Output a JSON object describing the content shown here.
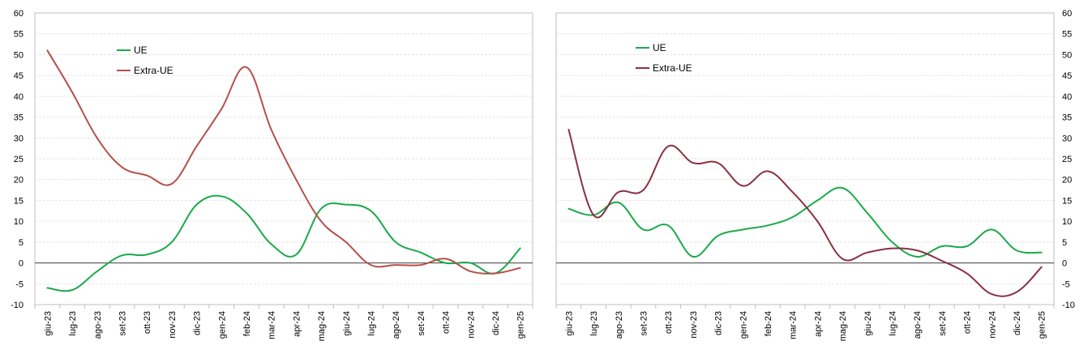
{
  "chart_data": [
    {
      "type": "line",
      "categories": [
        "giu-23",
        "lug-23",
        "ago-23",
        "set-23",
        "ott-23",
        "nov-23",
        "dic-23",
        "gen-24",
        "feb-24",
        "mar-24",
        "apr-24",
        "mag-24",
        "giu-24",
        "lug-24",
        "ago-24",
        "set-24",
        "ott-24",
        "nov-24",
        "dic-24",
        "gen-25"
      ],
      "y_axis": "left",
      "ylim": [
        -10,
        60
      ],
      "yticks": [
        "-10",
        "-5",
        "0",
        "5",
        "10",
        "15",
        "20",
        "25",
        "30",
        "35",
        "40",
        "45",
        "50",
        "55",
        "60"
      ],
      "grid": true,
      "legend_position": "top-left",
      "series": [
        {
          "name": "UE",
          "color": "#1aaa4a",
          "values": [
            -6,
            -6.5,
            -2,
            1.8,
            2,
            5,
            14,
            16,
            12,
            4.5,
            2,
            13,
            14,
            12.5,
            5,
            2.5,
            0,
            0,
            -2.5,
            3.5
          ]
        },
        {
          "name": "Extra-UE",
          "color": "#b5504b",
          "values": [
            51,
            41,
            30,
            23,
            21,
            19,
            28,
            37,
            47,
            32,
            20,
            10,
            5,
            -0.5,
            -0.5,
            -0.5,
            1,
            -2,
            -2.5,
            -1.2
          ]
        }
      ]
    },
    {
      "type": "line",
      "categories": [
        "giu-23",
        "lug-23",
        "ago-23",
        "set-23",
        "ott-23",
        "nov-23",
        "dic-23",
        "gen-24",
        "feb-24",
        "mar-24",
        "apr-24",
        "mag-24",
        "giu-24",
        "lug-24",
        "ago-24",
        "set-24",
        "ott-24",
        "nov-24",
        "dic-24",
        "gen-25"
      ],
      "y_axis": "right",
      "ylim": [
        -10,
        60
      ],
      "yticks": [
        "-10",
        "-5",
        "0",
        "5",
        "10",
        "15",
        "20",
        "25",
        "30",
        "35",
        "40",
        "45",
        "50",
        "55",
        "60"
      ],
      "grid": true,
      "legend_position": "top-left",
      "series": [
        {
          "name": "UE",
          "color": "#1aaa4a",
          "values": [
            13,
            11.5,
            14.5,
            8,
            9,
            1.5,
            6.5,
            8,
            9,
            11,
            15,
            18,
            12,
            5,
            1.5,
            4,
            4,
            8,
            3,
            2.5
          ]
        },
        {
          "name": "Extra-UE",
          "color": "#8a3040",
          "values": [
            32,
            11.5,
            17,
            17.5,
            28,
            24,
            24,
            18.5,
            22,
            17,
            10,
            1,
            2.5,
            3.5,
            3,
            0.5,
            -2.5,
            -7.5,
            -7,
            -1
          ]
        }
      ]
    }
  ]
}
